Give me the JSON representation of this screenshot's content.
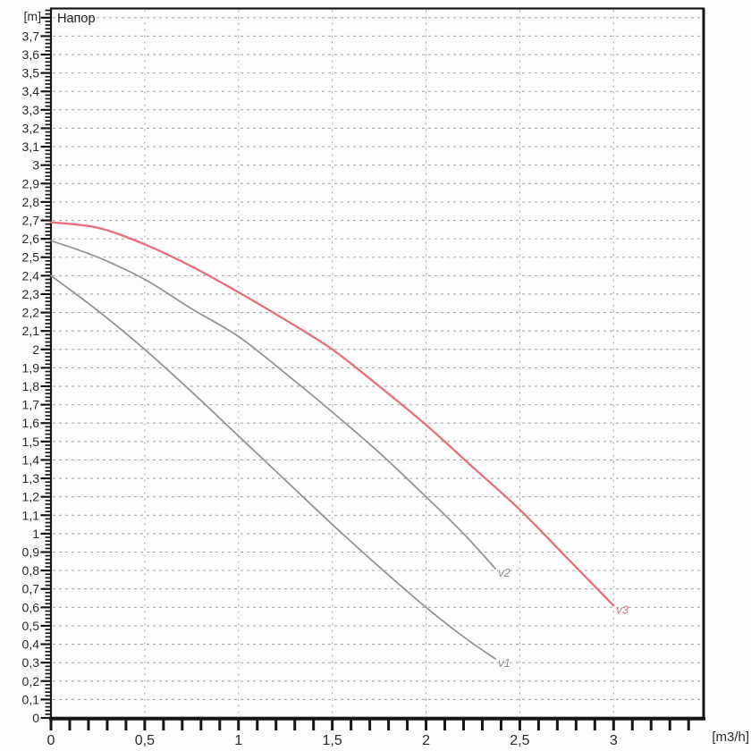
{
  "labels": {
    "title": "Напор",
    "y_unit": "[m]",
    "x_unit": "[m3/h]"
  },
  "colors": {
    "background": "#fdfdfd",
    "plot_background": "#fdfdfd",
    "axis": "#161616",
    "grid": "#a8a8a8",
    "tick_text": "#2a2a2a",
    "gray_curve": "#949494",
    "red_curve": "#e5707a"
  },
  "chart_data": {
    "type": "line",
    "title": "Напор",
    "xlabel": "[m3/h]",
    "ylabel": "[m]",
    "xlim": [
      0,
      3.48
    ],
    "ylim": [
      0,
      3.85
    ],
    "grid": true,
    "grid_x_step": 0.5,
    "grid_y_step": 0.1,
    "x_ticks": {
      "major_values": [
        0,
        0.5,
        1,
        1.5,
        2,
        2.5,
        3
      ],
      "labels": [
        "0",
        "0,5",
        "1",
        "1,5",
        "2",
        "2,5",
        "3"
      ],
      "minor_step": 0.1,
      "minor_max": 3.4
    },
    "y_ticks": {
      "major_step": 0.1,
      "label_max": 3.7,
      "minor_step": 0.02,
      "decimal_separator": ","
    },
    "legend_position": "end-of-line",
    "series": [
      {
        "name": "v1",
        "color": "#949494",
        "label_color": "#8f8f8f",
        "width": 1.8,
        "points": [
          [
            0,
            2.4
          ],
          [
            0.25,
            2.21
          ],
          [
            0.5,
            2.0
          ],
          [
            0.75,
            1.77
          ],
          [
            1,
            1.53
          ],
          [
            1.25,
            1.29
          ],
          [
            1.5,
            1.05
          ],
          [
            1.75,
            0.82
          ],
          [
            2,
            0.6
          ],
          [
            2.2,
            0.44
          ],
          [
            2.37,
            0.32
          ]
        ]
      },
      {
        "name": "v2",
        "color": "#949494",
        "label_color": "#8f8f8f",
        "width": 1.8,
        "points": [
          [
            0,
            2.59
          ],
          [
            0.25,
            2.5
          ],
          [
            0.5,
            2.38
          ],
          [
            0.75,
            2.22
          ],
          [
            1,
            2.07
          ],
          [
            1.25,
            1.87
          ],
          [
            1.5,
            1.66
          ],
          [
            1.75,
            1.44
          ],
          [
            2,
            1.2
          ],
          [
            2.2,
            1.0
          ],
          [
            2.37,
            0.81
          ]
        ]
      },
      {
        "name": "v3",
        "color": "#e5707a",
        "label_color": "#e5707a",
        "width": 2.3,
        "points": [
          [
            0,
            2.69
          ],
          [
            0.25,
            2.66
          ],
          [
            0.5,
            2.57
          ],
          [
            0.75,
            2.45
          ],
          [
            1,
            2.31
          ],
          [
            1.25,
            2.16
          ],
          [
            1.5,
            2.0
          ],
          [
            1.75,
            1.8
          ],
          [
            2,
            1.59
          ],
          [
            2.25,
            1.36
          ],
          [
            2.5,
            1.13
          ],
          [
            2.75,
            0.87
          ],
          [
            3,
            0.61
          ]
        ]
      }
    ]
  }
}
